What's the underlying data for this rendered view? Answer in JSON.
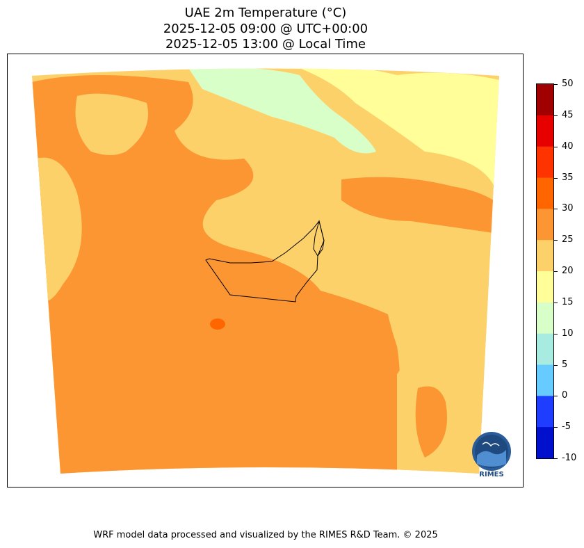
{
  "title": {
    "line1": "UAE 2m Temperature (°C)",
    "line2": "2025-12-05 09:00 @ UTC+00:00",
    "line3": "2025-12-05 13:00 @ Local Time"
  },
  "colorbar": {
    "levels": [
      50,
      45,
      40,
      35,
      30,
      25,
      20,
      15,
      10,
      5,
      0,
      -5,
      -10
    ],
    "colors": [
      "#a10000",
      "#e60000",
      "#ff3300",
      "#ff6600",
      "#fc9633",
      "#fcd16a",
      "#fffe99",
      "#d9ffc9",
      "#a8ebe0",
      "#66ccff",
      "#1f3dff",
      "#0010cc"
    ]
  },
  "logo": {
    "text": "RIMES"
  },
  "credit": "WRF model data processed and visualized by the RIMES R&D Team. © 2025"
}
